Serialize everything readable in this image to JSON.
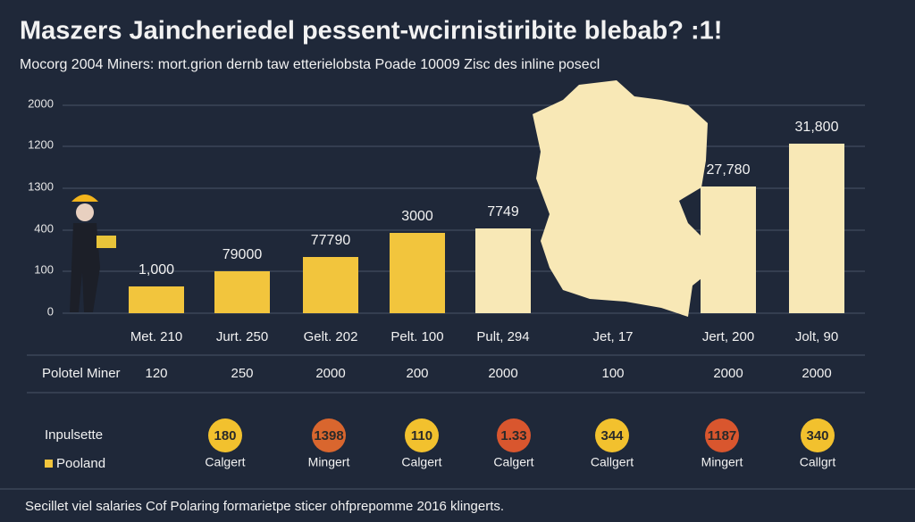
{
  "header": {
    "title": "Maszers Jaincheriedel pessent-wcirnistiribite blebab? :1!",
    "subtitle": "Mocorg 2004 Miners: mort.grion dernb taw etterielobsta Poade 10009 Zisc des inline posecl"
  },
  "axis_labels": [
    "2000",
    "1200",
    "1300",
    "400",
    "100",
    "0"
  ],
  "bars": [
    {
      "label": "1,000",
      "category": "Met. 210"
    },
    {
      "label": "79000",
      "category": "Jurt. 250"
    },
    {
      "label": "77790",
      "category": "Gelt. 202"
    },
    {
      "label": "3000",
      "category": "Pelt. 100"
    },
    {
      "label": "7749",
      "category": "Pult, 294"
    },
    {
      "label": "",
      "category": "Jet, 17"
    },
    {
      "label": "27,780",
      "category": "Jert, 200"
    },
    {
      "label": "31,800",
      "category": "Jolt, 90"
    }
  ],
  "row": {
    "name": "Polotel Miner",
    "values": [
      "120",
      "250",
      "2000",
      "200",
      "2000",
      "100",
      "2000",
      "2000"
    ]
  },
  "legend": {
    "title": "Inpulsette",
    "item": "Pooland"
  },
  "badges": [
    {
      "value": "180",
      "label": "Calgert"
    },
    {
      "value": "1398",
      "label": "Mingert"
    },
    {
      "value": "110",
      "label": "Calgert"
    },
    {
      "value": "1.33",
      "label": "Calgert"
    },
    {
      "value": "344",
      "label": "Callgert"
    },
    {
      "value": "1187",
      "label": "Mingert"
    },
    {
      "value": "340",
      "label": "Callgrt"
    }
  ],
  "footer": "Secillet viel salaries Cof Polaring formarietpe sticer ohfprepomme 2016 klingerts."
}
